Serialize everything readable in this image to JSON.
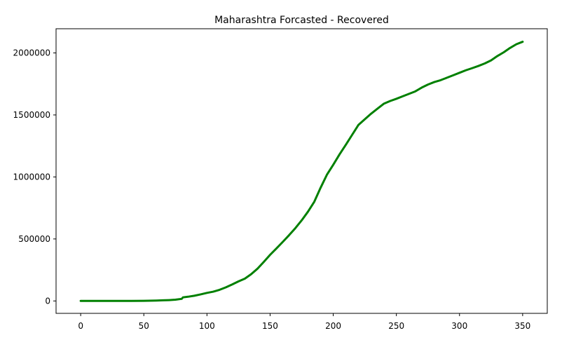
{
  "chart_data": {
    "type": "line",
    "title": "Maharashtra Forcasted - Recovered",
    "xlabel": "",
    "ylabel": "",
    "xlim": [
      -19.5,
      369.5
    ],
    "ylim": [
      -100000,
      2195000
    ],
    "xticks": [
      0,
      50,
      100,
      150,
      200,
      250,
      300,
      350
    ],
    "xtick_labels": [
      "0",
      "50",
      "100",
      "150",
      "200",
      "250",
      "300",
      "350"
    ],
    "yticks": [
      0,
      500000,
      1000000,
      1500000,
      2000000
    ],
    "ytick_labels": [
      "0",
      "500000",
      "1000000",
      "1500000",
      "2000000"
    ],
    "grid": false,
    "legend": "none",
    "series": [
      {
        "color": "#008000",
        "x": [
          0,
          20,
          40,
          50,
          60,
          65,
          70,
          75,
          80,
          81,
          85,
          90,
          95,
          100,
          105,
          110,
          115,
          120,
          125,
          130,
          135,
          140,
          145,
          150,
          155,
          160,
          165,
          170,
          175,
          180,
          185,
          190,
          195,
          200,
          205,
          210,
          215,
          220,
          225,
          230,
          235,
          240,
          245,
          250,
          255,
          260,
          265,
          270,
          275,
          280,
          285,
          290,
          295,
          300,
          305,
          310,
          315,
          320,
          325,
          330,
          335,
          340,
          345,
          350
        ],
        "y": [
          0,
          0,
          0,
          1000,
          3000,
          5000,
          7000,
          10000,
          17000,
          29000,
          34000,
          42000,
          53000,
          65000,
          75000,
          90000,
          110000,
          133000,
          158000,
          180000,
          216000,
          260000,
          315000,
          372000,
          423000,
          476000,
          530000,
          587000,
          650000,
          720000,
          800000,
          913000,
          1018000,
          1098000,
          1182000,
          1260000,
          1340000,
          1420000,
          1465000,
          1510000,
          1550000,
          1590000,
          1612000,
          1630000,
          1650000,
          1670000,
          1690000,
          1720000,
          1745000,
          1765000,
          1780000,
          1800000,
          1820000,
          1840000,
          1860000,
          1877000,
          1895000,
          1915000,
          1940000,
          1975000,
          2005000,
          2040000,
          2070000,
          2090000
        ]
      }
    ]
  }
}
